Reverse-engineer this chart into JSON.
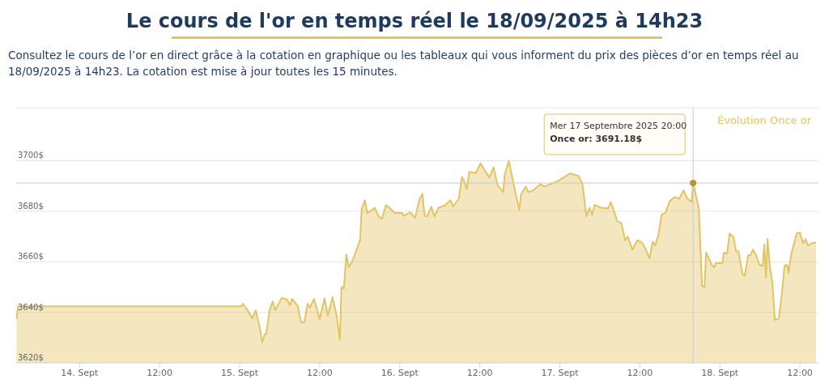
{
  "chart_data": {
    "type": "area",
    "title": "Le cours de l'or en temps réel le 18/09/2025 à 14h23",
    "subtitle": "Consultez le cours de l’or en direct grâce à la cotation en graphique ou les tableaux qui vous informent du prix des pièces d’or en temps réel au 18/09/2025 à 14h23. La cotation est mise à jour toutes les 15 minutes.",
    "xlim": [
      "2025-09-13T14:30",
      "2025-09-18T14:40"
    ],
    "xticks": [
      {
        "value": "2025-09-14T00:00",
        "label": "14. Sept"
      },
      {
        "value": "2025-09-14T12:00",
        "label": "12:00"
      },
      {
        "value": "2025-09-15T00:00",
        "label": "15. Sept"
      },
      {
        "value": "2025-09-15T12:00",
        "label": "12:00"
      },
      {
        "value": "2025-09-16T00:00",
        "label": "16. Sept"
      },
      {
        "value": "2025-09-16T12:00",
        "label": "12:00"
      },
      {
        "value": "2025-09-17T00:00",
        "label": "17. Sept"
      },
      {
        "value": "2025-09-17T12:00",
        "label": "12:00"
      },
      {
        "value": "2025-09-18T00:00",
        "label": "18. Sept"
      },
      {
        "value": "2025-09-18T12:00",
        "label": "12:00"
      }
    ],
    "ylim": [
      3620,
      3721
    ],
    "yticks": [
      {
        "value": 3620,
        "label": "3620$"
      },
      {
        "value": 3640,
        "label": "3640$"
      },
      {
        "value": 3660,
        "label": "3660$"
      },
      {
        "value": 3680,
        "label": "3680$"
      },
      {
        "value": 3700,
        "label": "3700$"
      }
    ],
    "grid": "y",
    "legend": "top right",
    "ref_lines": [
      {
        "axis": "x",
        "value": "2025-09-17T20:00",
        "color": "#c8c8c8"
      },
      {
        "axis": "y",
        "value": 3691.18,
        "color": "#c8c8c8"
      }
    ],
    "annotations": [
      "Mer 17 Septembre 2025 20:00",
      "Once or: 3691.18$"
    ],
    "series": [
      {
        "name": "Évolution Once or",
        "color": "#e3c462",
        "x": [
          "2025-09-13T14:33",
          "2025-09-13T14:47",
          "2025-09-15T00:15",
          "2025-09-15T00:29",
          "2025-09-15T01:05",
          "2025-09-15T01:56",
          "2025-09-15T02:25",
          "2025-09-15T03:02",
          "2025-09-15T03:24",
          "2025-09-15T03:45",
          "2025-09-15T04:00",
          "2025-09-15T04:29",
          "2025-09-15T04:58",
          "2025-09-15T05:20",
          "2025-09-15T06:18",
          "2025-09-15T07:09",
          "2025-09-15T07:31",
          "2025-09-15T07:53",
          "2025-09-15T08:44",
          "2025-09-15T09:13",
          "2025-09-15T09:42",
          "2025-09-15T10:11",
          "2025-09-15T10:33",
          "2025-09-15T11:09",
          "2025-09-15T12:00",
          "2025-09-15T12:44",
          "2025-09-15T13:13",
          "2025-09-15T13:56",
          "2025-09-15T14:33",
          "2025-09-15T15:02",
          "2025-09-15T15:16",
          "2025-09-15T15:38",
          "2025-09-15T16:00",
          "2025-09-15T16:22",
          "2025-09-15T16:51",
          "2025-09-15T17:27",
          "2025-09-15T18:04",
          "2025-09-15T18:18",
          "2025-09-15T18:47",
          "2025-09-15T19:09",
          "2025-09-15T20:15",
          "2025-09-15T20:51",
          "2025-09-15T21:20",
          "2025-09-15T21:56",
          "2025-09-15T22:33",
          "2025-09-15T23:16",
          "2025-09-16T00:22",
          "2025-09-16T00:36",
          "2025-09-16T01:35",
          "2025-09-16T02:18",
          "2025-09-16T02:55",
          "2025-09-16T03:24",
          "2025-09-16T03:45",
          "2025-09-16T04:07",
          "2025-09-16T04:44",
          "2025-09-16T05:13",
          "2025-09-16T05:49",
          "2025-09-16T06:47",
          "2025-09-16T07:38",
          "2025-09-16T08:00",
          "2025-09-16T08:51",
          "2025-09-16T09:20",
          "2025-09-16T09:35",
          "2025-09-16T10:04",
          "2025-09-16T10:25",
          "2025-09-16T11:24",
          "2025-09-16T12:07",
          "2025-09-16T12:36",
          "2025-09-16T13:27",
          "2025-09-16T14:04",
          "2025-09-16T14:40",
          "2025-09-16T15:31",
          "2025-09-16T15:45",
          "2025-09-16T16:22",
          "2025-09-16T17:20",
          "2025-09-16T17:56",
          "2025-09-16T18:11",
          "2025-09-16T18:55",
          "2025-09-16T19:16",
          "2025-09-16T20:00",
          "2025-09-16T21:05",
          "2025-09-16T21:42",
          "2025-09-16T23:45",
          "2025-09-17T01:35",
          "2025-09-17T02:47",
          "2025-09-17T03:24",
          "2025-09-17T04:00",
          "2025-09-17T04:29",
          "2025-09-17T04:51",
          "2025-09-17T05:13",
          "2025-09-17T06:11",
          "2025-09-17T07:16",
          "2025-09-17T07:38",
          "2025-09-17T08:15",
          "2025-09-17T08:36",
          "2025-09-17T09:13",
          "2025-09-17T09:49",
          "2025-09-17T10:11",
          "2025-09-17T10:55",
          "2025-09-17T11:38",
          "2025-09-17T12:22",
          "2025-09-17T12:51",
          "2025-09-17T13:27",
          "2025-09-17T13:56",
          "2025-09-17T14:18",
          "2025-09-17T14:47",
          "2025-09-17T15:16",
          "2025-09-17T15:53",
          "2025-09-17T16:29",
          "2025-09-17T17:13",
          "2025-09-17T17:56",
          "2025-09-17T18:33",
          "2025-09-17T19:09",
          "2025-09-17T19:45",
          "2025-09-17T20:00",
          "2025-09-17T20:51",
          "2025-09-17T21:20",
          "2025-09-17T21:42",
          "2025-09-17T21:56",
          "2025-09-17T22:25",
          "2025-09-17T22:47",
          "2025-09-17T23:09",
          "2025-09-17T23:24",
          "2025-09-18T00:22",
          "2025-09-18T00:36",
          "2025-09-18T01:05",
          "2025-09-18T01:27",
          "2025-09-18T02:04",
          "2025-09-18T02:25",
          "2025-09-18T02:47",
          "2025-09-18T03:02",
          "2025-09-18T03:24",
          "2025-09-18T03:45",
          "2025-09-18T04:15",
          "2025-09-18T04:36",
          "2025-09-18T04:58",
          "2025-09-18T05:27",
          "2025-09-18T05:56",
          "2025-09-18T06:25",
          "2025-09-18T06:40",
          "2025-09-18T06:55",
          "2025-09-18T07:09",
          "2025-09-18T07:31",
          "2025-09-18T07:53",
          "2025-09-18T08:15",
          "2025-09-18T08:51",
          "2025-09-18T09:20",
          "2025-09-18T09:42",
          "2025-09-18T10:04",
          "2025-09-18T10:18",
          "2025-09-18T10:40",
          "2025-09-18T11:31",
          "2025-09-18T12:00",
          "2025-09-18T12:29",
          "2025-09-18T12:51",
          "2025-09-18T13:13",
          "2025-09-18T13:49",
          "2025-09-18T14:25"
        ],
        "values": [
          3637.5,
          3642.4,
          3642.4,
          3643.4,
          3641.2,
          3637.6,
          3640.8,
          3633.8,
          3628.1,
          3631.2,
          3631.6,
          3640.8,
          3644.3,
          3640.8,
          3645.7,
          3645,
          3642.8,
          3645.3,
          3642.4,
          3636,
          3636,
          3643.4,
          3641.8,
          3645.3,
          3637.3,
          3645.6,
          3638.6,
          3646,
          3638.6,
          3629.3,
          3650,
          3649.4,
          3662.9,
          3657.8,
          3660,
          3664.2,
          3668.7,
          3680.8,
          3684.4,
          3679.2,
          3681.4,
          3678,
          3677,
          3682.4,
          3681.2,
          3679.3,
          3679.3,
          3678.2,
          3679.6,
          3677.3,
          3684.4,
          3686.9,
          3678.2,
          3678,
          3681.8,
          3677.9,
          3681.4,
          3682.4,
          3684.4,
          3681.8,
          3685,
          3693.7,
          3692.4,
          3688.8,
          3695.6,
          3695.1,
          3699,
          3696.8,
          3693.3,
          3697.4,
          3690.4,
          3687.6,
          3694.6,
          3700,
          3687.6,
          3680.5,
          3686.6,
          3689.8,
          3687.6,
          3688.2,
          3690.8,
          3689.8,
          3692,
          3695,
          3694,
          3690.8,
          3678,
          3681.4,
          3678.6,
          3682.5,
          3681.4,
          3681.2,
          3683.7,
          3679.2,
          3676,
          3675.4,
          3668.4,
          3670,
          3664.8,
          3668.6,
          3667.4,
          3665.2,
          3661.3,
          3668,
          3666.4,
          3670.6,
          3678.6,
          3679.6,
          3684,
          3685.6,
          3685,
          3688.2,
          3685,
          3683.7,
          3691.18,
          3681.2,
          3650.4,
          3650,
          3663.6,
          3661,
          3658.8,
          3657.8,
          3659.4,
          3659.4,
          3663.6,
          3663.2,
          3671.2,
          3669.7,
          3664.2,
          3664.2,
          3660.4,
          3655.2,
          3654.6,
          3662.6,
          3662.6,
          3664.8,
          3662.6,
          3658.8,
          3658.4,
          3666.8,
          3653.6,
          3669,
          3657.8,
          3651.4,
          3637,
          3637.6,
          3648.2,
          3658.4,
          3658.8,
          3655.5,
          3662.6,
          3671.2,
          3671.6,
          3667.4,
          3669,
          3666.4,
          3667.4,
          3667.7
        ]
      }
    ]
  }
}
